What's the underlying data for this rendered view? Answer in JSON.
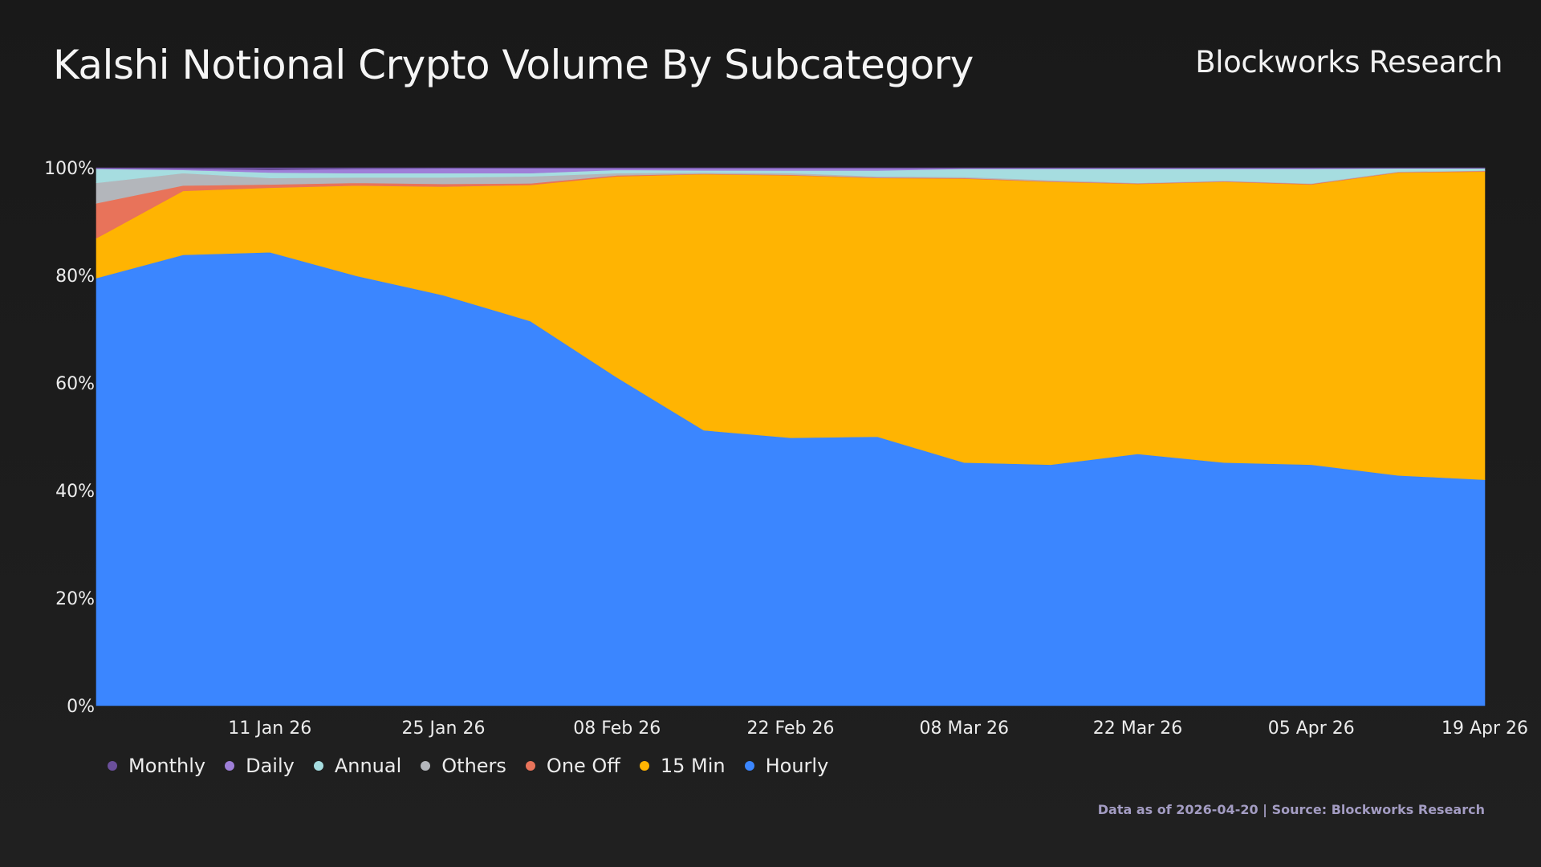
{
  "title": "Kalshi Notional Crypto Volume By Subcategory",
  "brand": "Blockworks Research",
  "footer": "Data as of 2026-04-20 | Source: Blockworks Research",
  "chart_data": {
    "type": "area",
    "stacked": true,
    "normalized": true,
    "title": "Kalshi Notional Crypto Volume By Subcategory",
    "xlabel": "",
    "ylabel": "",
    "ylim": [
      0,
      100
    ],
    "y_ticks": [
      "0%",
      "20%",
      "40%",
      "60%",
      "80%",
      "100%"
    ],
    "x_ticks": [
      "11 Jan 26",
      "25 Jan 26",
      "08 Feb 26",
      "22 Feb 26",
      "08 Mar 26",
      "22 Mar 26",
      "05 Apr 26",
      "19 Apr 26"
    ],
    "x": [
      "28 Dec 25",
      "04 Jan 26",
      "11 Jan 26",
      "18 Jan 26",
      "25 Jan 26",
      "01 Feb 26",
      "08 Feb 26",
      "15 Feb 26",
      "22 Feb 26",
      "01 Mar 26",
      "08 Mar 26",
      "15 Mar 26",
      "22 Mar 26",
      "29 Mar 26",
      "05 Apr 26",
      "12 Apr 26",
      "19 Apr 26"
    ],
    "grid": false,
    "legend_position": "bottom-left",
    "series": [
      {
        "name": "Hourly",
        "color": "#3b86ff",
        "values": [
          79.5,
          83.8,
          84.3,
          79.9,
          76.3,
          71.5,
          61.0,
          51.2,
          49.8,
          50.0,
          45.2,
          44.8,
          46.8,
          45.2,
          44.8,
          42.8,
          42.0
        ]
      },
      {
        "name": "15 Min",
        "color": "#ffb402",
        "values": [
          7.4,
          11.9,
          12.0,
          16.8,
          20.2,
          25.3,
          37.4,
          47.6,
          48.8,
          48.1,
          52.8,
          52.6,
          50.2,
          52.2,
          52.1,
          56.3,
          57.3
        ]
      },
      {
        "name": "One Off",
        "color": "#e8735a",
        "values": [
          6.5,
          1.0,
          0.6,
          0.5,
          0.5,
          0.3,
          0.2,
          0.1,
          0.1,
          0.1,
          0.1,
          0.1,
          0.1,
          0.1,
          0.1,
          0.1,
          0.1
        ]
      },
      {
        "name": "Others",
        "color": "#b3b6bb",
        "values": [
          3.8,
          2.3,
          1.2,
          1.0,
          1.2,
          1.3,
          0.4,
          0.2,
          0.3,
          0.2,
          0.2,
          0.2,
          0.1,
          0.1,
          0.1,
          0.1,
          0.1
        ]
      },
      {
        "name": "Annual",
        "color": "#a6dde0",
        "values": [
          2.6,
          0.6,
          1.0,
          0.8,
          0.8,
          0.6,
          0.6,
          0.4,
          0.5,
          1.1,
          1.5,
          2.1,
          2.6,
          2.2,
          2.7,
          0.6,
          0.4
        ]
      },
      {
        "name": "Daily",
        "color": "#9e7fd8",
        "values": [
          0.1,
          0.2,
          0.5,
          0.8,
          0.9,
          0.9,
          0.3,
          0.4,
          0.4,
          0.4,
          0.1,
          0.1,
          0.1,
          0.1,
          0.1,
          0.0,
          0.0
        ]
      },
      {
        "name": "Monthly",
        "color": "#6a4f9a",
        "values": [
          0.1,
          0.2,
          0.4,
          0.2,
          0.1,
          0.1,
          0.1,
          0.1,
          0.1,
          0.1,
          0.1,
          0.1,
          0.1,
          0.1,
          0.1,
          0.1,
          0.1
        ]
      }
    ],
    "legend": [
      {
        "name": "Monthly",
        "color": "#6a4f9a"
      },
      {
        "name": "Daily",
        "color": "#9e7fd8"
      },
      {
        "name": "Annual",
        "color": "#a6dde0"
      },
      {
        "name": "Others",
        "color": "#b3b6bb"
      },
      {
        "name": "One Off",
        "color": "#e8735a"
      },
      {
        "name": "15 Min",
        "color": "#ffb402"
      },
      {
        "name": "Hourly",
        "color": "#3b86ff"
      }
    ]
  }
}
